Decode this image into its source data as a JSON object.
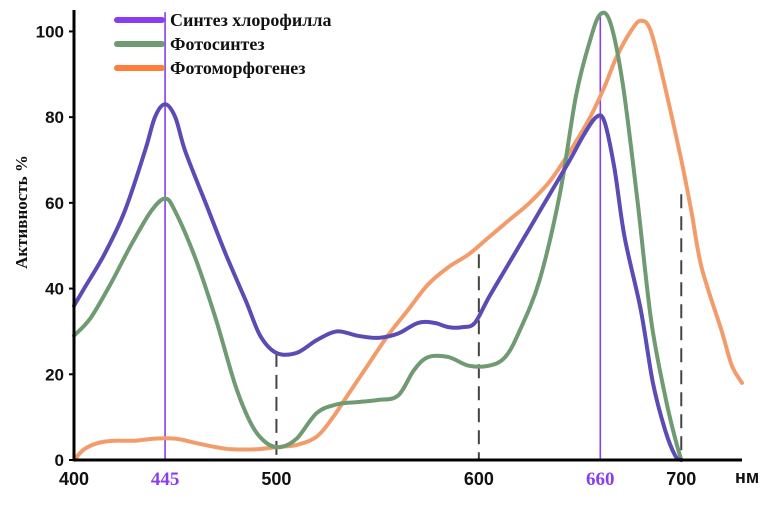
{
  "chart_data": {
    "type": "line",
    "ylabel": "Активность %",
    "xunit": "нм",
    "xlim": [
      400,
      730
    ],
    "ylim": [
      0,
      105
    ],
    "x_ticks": [
      "400",
      "445",
      "500",
      "600",
      "660",
      "700"
    ],
    "highlight_ticks": [
      "445",
      "660"
    ],
    "y_ticks": [
      "0",
      "20",
      "40",
      "60",
      "80",
      "100"
    ],
    "legend_position": "top-left",
    "grid": false,
    "solid_markers": [
      445,
      660
    ],
    "dashed_markers": [
      {
        "x": 500,
        "y": 25
      },
      {
        "x": 600,
        "y": 48
      },
      {
        "x": 700,
        "y": 62
      }
    ],
    "series": [
      {
        "name": "Синтез хлорофилла",
        "color": "#5a4bb5",
        "legend_color": "#8a3df0",
        "points": [
          [
            400,
            36
          ],
          [
            405,
            40
          ],
          [
            415,
            48
          ],
          [
            425,
            58
          ],
          [
            435,
            72
          ],
          [
            440,
            80
          ],
          [
            445,
            83
          ],
          [
            450,
            80
          ],
          [
            455,
            72
          ],
          [
            465,
            60
          ],
          [
            475,
            48
          ],
          [
            485,
            37
          ],
          [
            492,
            29
          ],
          [
            500,
            25
          ],
          [
            510,
            25
          ],
          [
            520,
            28
          ],
          [
            530,
            30
          ],
          [
            540,
            29
          ],
          [
            550,
            28.5
          ],
          [
            560,
            29.5
          ],
          [
            570,
            32
          ],
          [
            578,
            32
          ],
          [
            585,
            31
          ],
          [
            592,
            31
          ],
          [
            598,
            32
          ],
          [
            605,
            38
          ],
          [
            615,
            46
          ],
          [
            625,
            54
          ],
          [
            635,
            62
          ],
          [
            645,
            70
          ],
          [
            652,
            76
          ],
          [
            658,
            80
          ],
          [
            662,
            79
          ],
          [
            667,
            68
          ],
          [
            672,
            52
          ],
          [
            680,
            35
          ],
          [
            686,
            18
          ],
          [
            692,
            7
          ],
          [
            697,
            1
          ],
          [
            700,
            0
          ]
        ]
      },
      {
        "name": "Фотосинтез",
        "color": "#6f9a72",
        "legend_color": "#6f9a72",
        "points": [
          [
            400,
            29
          ],
          [
            408,
            33
          ],
          [
            418,
            41
          ],
          [
            428,
            50
          ],
          [
            438,
            58
          ],
          [
            445,
            61
          ],
          [
            450,
            58
          ],
          [
            460,
            47
          ],
          [
            470,
            33
          ],
          [
            480,
            17
          ],
          [
            488,
            8
          ],
          [
            495,
            4
          ],
          [
            502,
            3
          ],
          [
            510,
            5
          ],
          [
            520,
            11
          ],
          [
            530,
            13
          ],
          [
            540,
            13.5
          ],
          [
            550,
            14
          ],
          [
            560,
            15
          ],
          [
            568,
            21
          ],
          [
            575,
            24
          ],
          [
            585,
            24
          ],
          [
            595,
            22
          ],
          [
            605,
            22
          ],
          [
            613,
            24
          ],
          [
            620,
            30
          ],
          [
            630,
            42
          ],
          [
            640,
            62
          ],
          [
            648,
            85
          ],
          [
            655,
            98
          ],
          [
            660,
            104
          ],
          [
            665,
            102
          ],
          [
            671,
            88
          ],
          [
            678,
            62
          ],
          [
            685,
            33
          ],
          [
            692,
            15
          ],
          [
            697,
            5
          ],
          [
            700,
            0
          ]
        ]
      },
      {
        "name": "Фотоморфогенез",
        "color": "#f39c6b",
        "legend_color": "#ff7e3a",
        "points": [
          [
            400,
            0
          ],
          [
            405,
            2.5
          ],
          [
            412,
            4
          ],
          [
            420,
            4.5
          ],
          [
            430,
            4.5
          ],
          [
            440,
            5
          ],
          [
            450,
            5
          ],
          [
            460,
            4
          ],
          [
            470,
            3
          ],
          [
            478,
            2.5
          ],
          [
            490,
            2.5
          ],
          [
            500,
            3
          ],
          [
            510,
            3.5
          ],
          [
            520,
            5.5
          ],
          [
            528,
            10
          ],
          [
            535,
            15
          ],
          [
            545,
            22
          ],
          [
            555,
            29
          ],
          [
            565,
            35
          ],
          [
            575,
            41
          ],
          [
            585,
            45
          ],
          [
            595,
            48
          ],
          [
            605,
            52
          ],
          [
            615,
            56
          ],
          [
            625,
            60
          ],
          [
            635,
            65
          ],
          [
            645,
            72
          ],
          [
            655,
            80
          ],
          [
            662,
            87
          ],
          [
            668,
            94
          ],
          [
            675,
            100
          ],
          [
            680,
            102.5
          ],
          [
            685,
            100
          ],
          [
            692,
            87
          ],
          [
            700,
            70
          ],
          [
            705,
            58
          ],
          [
            710,
            45
          ],
          [
            720,
            30
          ],
          [
            725,
            22
          ],
          [
            730,
            18
          ]
        ]
      }
    ]
  }
}
